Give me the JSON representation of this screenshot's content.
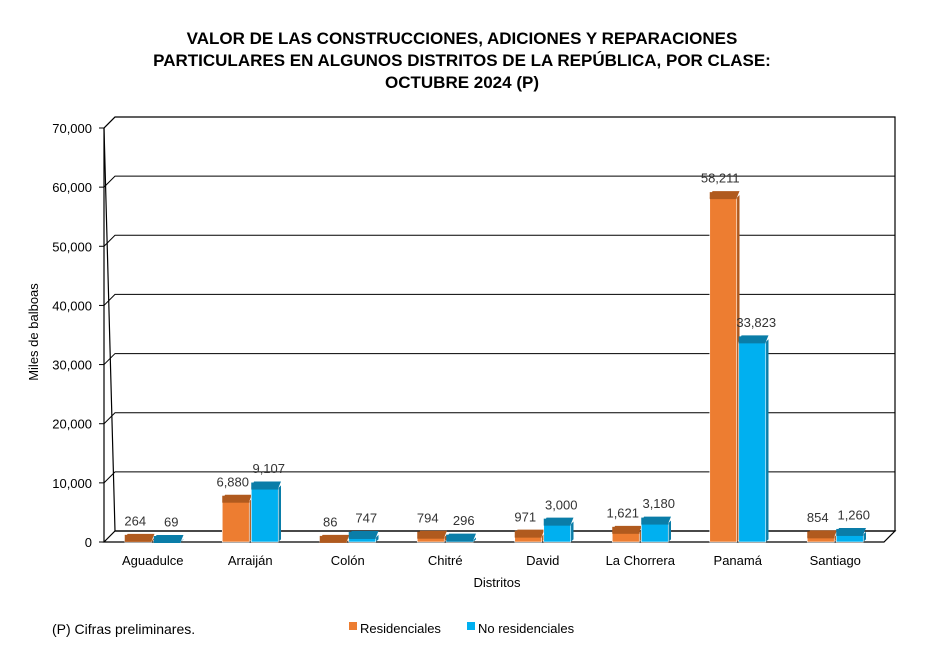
{
  "chart_data": {
    "type": "bar",
    "title_lines": [
      "VALOR DE LAS CONSTRUCCIONES, ADICIONES Y REPARACIONES",
      "PARTICULARES EN ALGUNOS DISTRITOS DE LA REPÚBLICA, POR CLASE:",
      "OCTUBRE 2024 (P)"
    ],
    "xlabel": "Distritos",
    "ylabel": "Miles de balboas",
    "ylim": [
      0,
      70000
    ],
    "yticks": [
      0,
      10000,
      20000,
      30000,
      40000,
      50000,
      60000,
      70000
    ],
    "ytick_labels": [
      "0",
      "10,000",
      "20,000",
      "30,000",
      "40,000",
      "50,000",
      "60,000",
      "70,000"
    ],
    "grid": true,
    "legend_position": "bottom",
    "categories": [
      "Aguadulce",
      "Arraiján",
      "Colón",
      "Chitré",
      "David",
      "La Chorrera",
      "Panamá",
      "Santiago"
    ],
    "series": [
      {
        "name": "Residenciales",
        "color": "#ED7D31",
        "top_color": "#B05A1E",
        "values": [
          264,
          6880,
          86,
          794,
          971,
          1621,
          58211,
          854
        ],
        "labels": [
          "264",
          "6,880",
          "86",
          "794",
          "971",
          "1,621",
          "58,211",
          "854"
        ]
      },
      {
        "name": "No residenciales",
        "color": "#00B0F0",
        "top_color": "#0A7DA8",
        "values": [
          69,
          9107,
          747,
          296,
          3000,
          3180,
          33823,
          1260
        ],
        "labels": [
          "69",
          "9,107",
          "747",
          "296",
          "3,000",
          "3,180",
          "33,823",
          "1,260"
        ]
      }
    ],
    "footnote": "(P) Cifras preliminares."
  }
}
